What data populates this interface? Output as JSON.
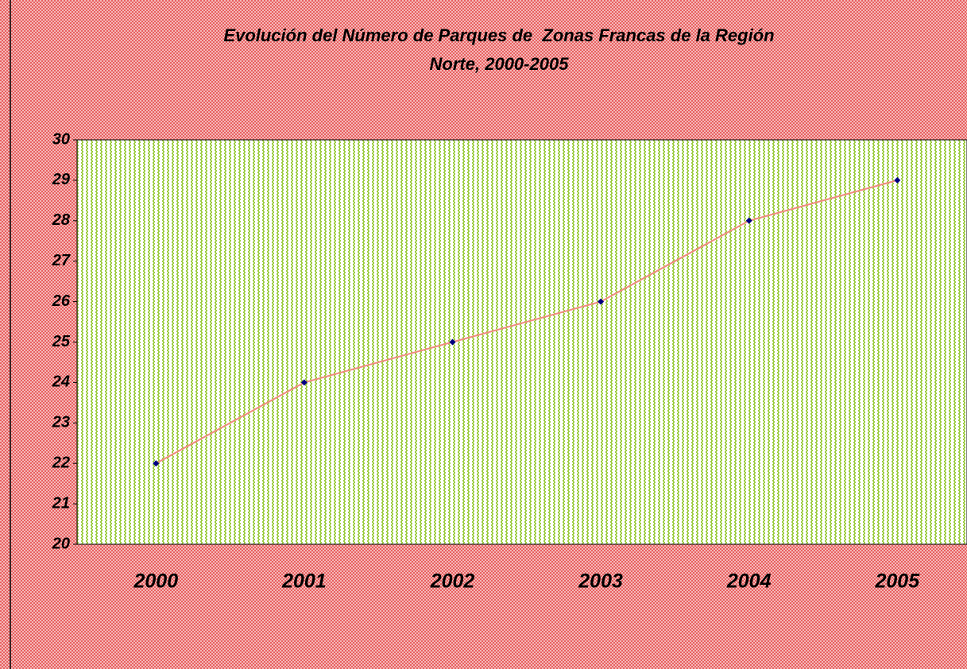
{
  "chart_data": {
    "type": "line",
    "title": [
      "Evolución del Número de Parques de  Zonas Francas de la Región",
      "Norte, 2000-2005"
    ],
    "categories": [
      "2000",
      "2001",
      "2002",
      "2003",
      "2004",
      "2005"
    ],
    "values": [
      22,
      24,
      25,
      26,
      28,
      29
    ],
    "color": "#f08a80",
    "marker_color": "#000080",
    "ylim": [
      20,
      30
    ],
    "yticks": [
      20,
      21,
      22,
      23,
      24,
      25,
      26,
      27,
      28,
      29,
      30
    ]
  }
}
